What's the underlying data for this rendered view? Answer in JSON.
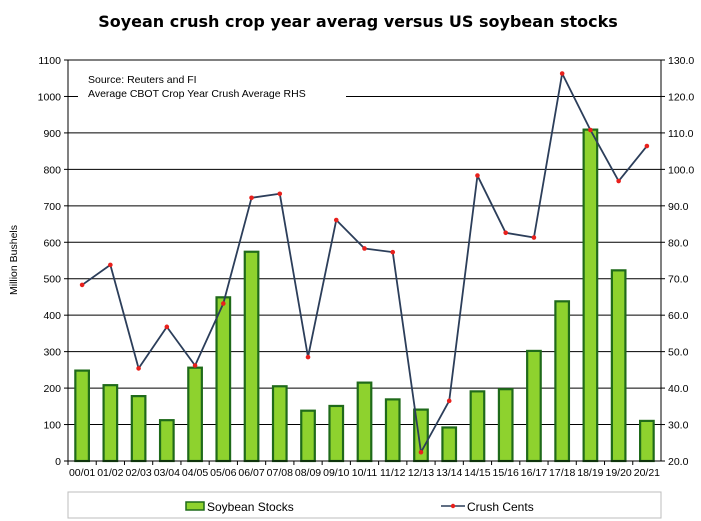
{
  "chart_data": {
    "type": "bar",
    "title": "Soyean crush crop year averag versus US soybean stocks",
    "annotations": [
      "Source: Reuters and FI",
      "Average CBOT Crop Year Crush Average RHS"
    ],
    "ylabel": "Million Bushels",
    "y2label": "",
    "categories": [
      "00/01",
      "01/02",
      "02/03",
      "03/04",
      "04/05",
      "05/06",
      "06/07",
      "07/08",
      "08/09",
      "09/10",
      "10/11",
      "11/12",
      "12/13",
      "13/14",
      "14/15",
      "15/16",
      "16/17",
      "17/18",
      "18/19",
      "19/20",
      "20/21"
    ],
    "ylim": [
      0,
      1100
    ],
    "yticks": [
      "0",
      "100",
      "200",
      "300",
      "400",
      "500",
      "600",
      "700",
      "800",
      "900",
      "1000",
      "1100"
    ],
    "y2lim": [
      20,
      130
    ],
    "y2ticks": [
      "20.0",
      "30.0",
      "40.0",
      "50.0",
      "60.0",
      "70.0",
      "80.0",
      "90.0",
      "100.0",
      "110.0",
      "120.0",
      "130.0"
    ],
    "grid": true,
    "legend_position": "bottom",
    "series": [
      {
        "name": "Soybean Stocks",
        "type": "bar",
        "axis": "left",
        "color": "#8ed22e",
        "values": [
          248,
          208,
          178,
          112,
          256,
          449,
          574,
          205,
          138,
          151,
          215,
          169,
          141,
          92,
          191,
          197,
          302,
          438,
          909,
          523,
          110
        ]
      },
      {
        "name": "Crush Cents",
        "type": "line",
        "axis": "right",
        "color": "#2c3e5a",
        "marker_color": "#e8201c",
        "values": [
          68.3,
          73.8,
          45.4,
          56.8,
          46.2,
          63.2,
          92.2,
          93.3,
          48.5,
          86.1,
          78.3,
          77.3,
          22.4,
          36.5,
          98.3,
          82.6,
          81.3,
          126.3,
          110.8,
          96.8,
          106.4
        ]
      }
    ]
  }
}
